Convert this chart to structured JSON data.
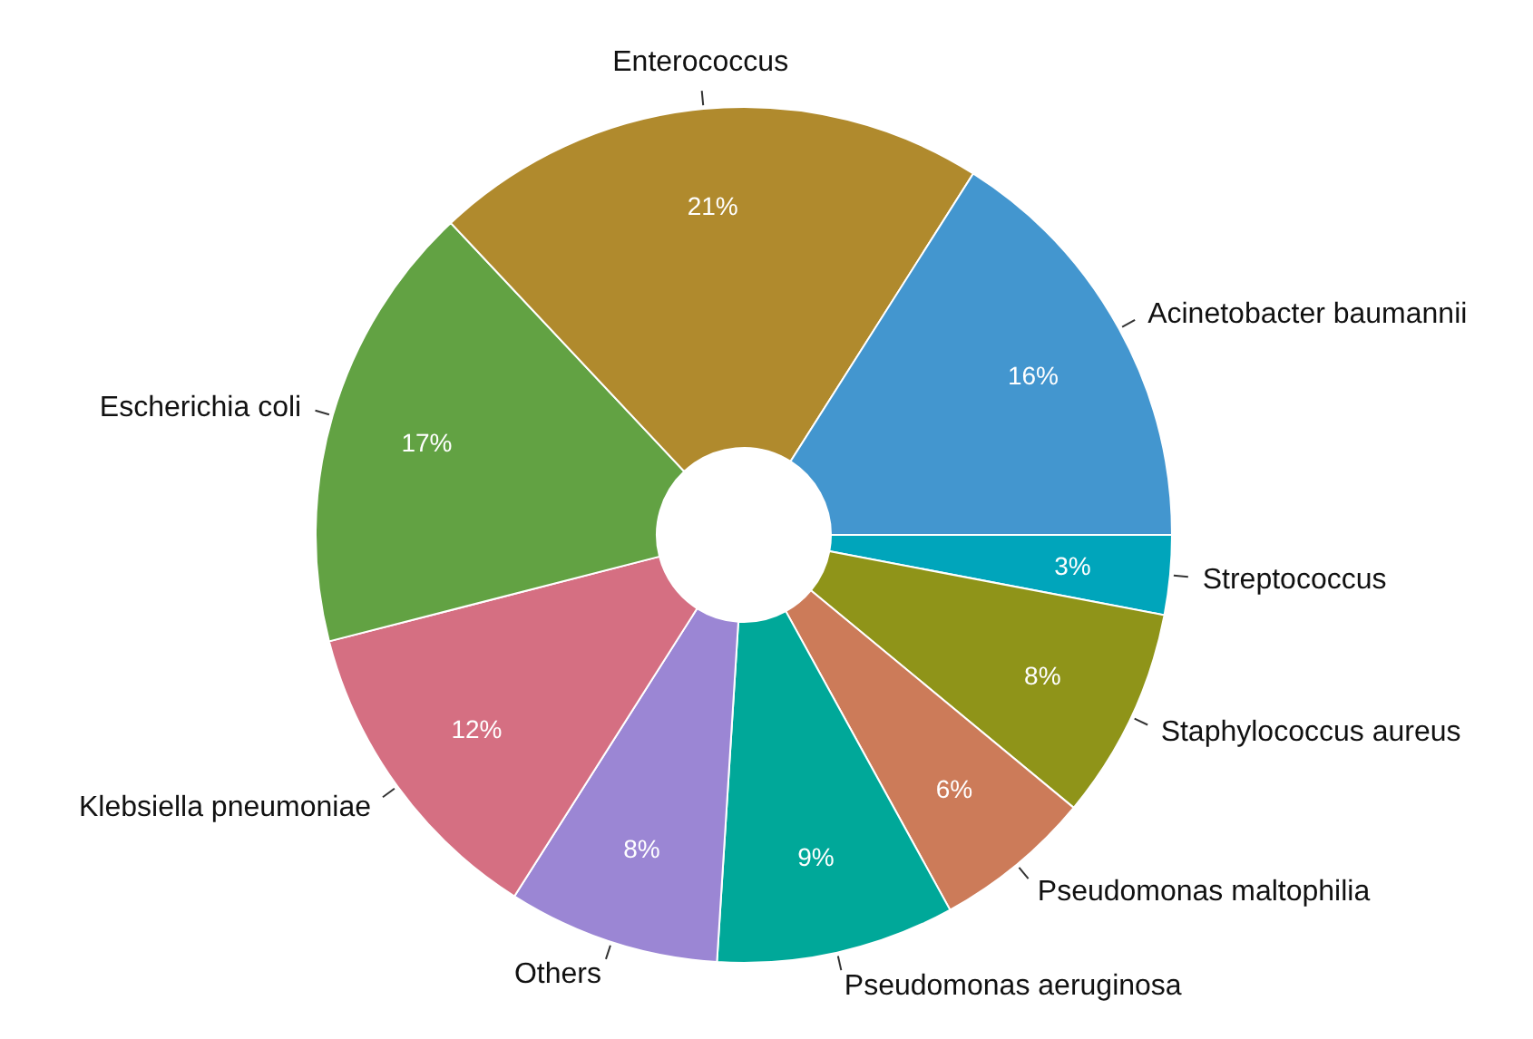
{
  "chart_data": {
    "type": "donut",
    "categories": [
      "Streptococcus",
      "Staphylococcus aureus",
      "Pseudomonas maltophilia",
      "Pseudomonas aeruginosa",
      "Others",
      "Klebsiella pneumoniae",
      "Escherichia coli",
      "Enterococcus",
      "Acinetobacter baumannii"
    ],
    "values": [
      3,
      8,
      6,
      9,
      8,
      12,
      17,
      21,
      16
    ],
    "value_labels": [
      "3%",
      "8%",
      "6%",
      "9%",
      "8%",
      "12%",
      "17%",
      "21%",
      "16%"
    ],
    "colors": [
      "#00a5bb",
      "#8f9419",
      "#cc7b59",
      "#00a899",
      "#9b86d4",
      "#d56f82",
      "#62a243",
      "#b08a2d",
      "#4396cf"
    ],
    "legend": false
  }
}
